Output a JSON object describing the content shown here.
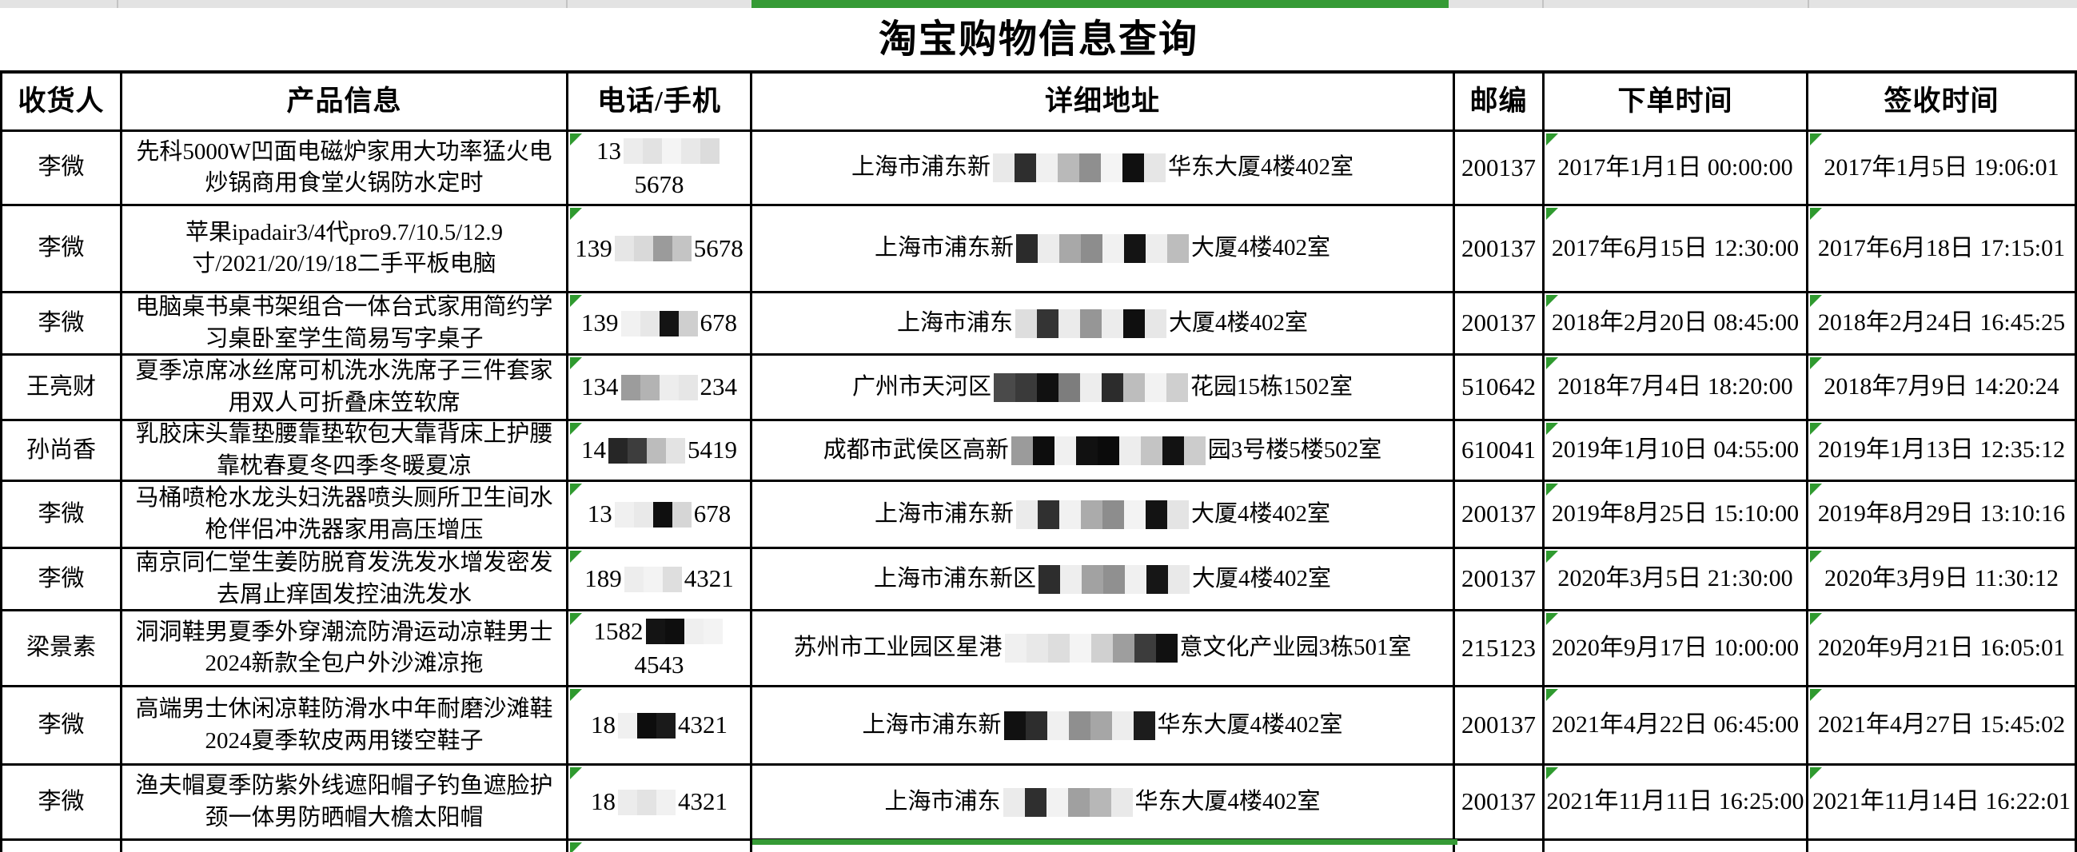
{
  "title": "淘宝购物信息查询",
  "colors": {
    "selection_green": "#359a35",
    "indicator_green": "#2f9a2f",
    "grid_border": "#000000",
    "sheet_strip": "#e3e3e3"
  },
  "columns": [
    {
      "key": "name",
      "label": "收货人"
    },
    {
      "key": "product",
      "label": "产品信息"
    },
    {
      "key": "phone",
      "label": "电话/手机"
    },
    {
      "key": "address",
      "label": "详细地址"
    },
    {
      "key": "zip",
      "label": "邮编"
    },
    {
      "key": "order_time",
      "label": "下单时间"
    },
    {
      "key": "sign_time",
      "label": "签收时间"
    }
  ],
  "rows": [
    {
      "name": "李微",
      "product": "先科5000W凹面电磁炉家用大功率猛火电炒锅商用食堂火锅防水定时",
      "phone": [
        {
          "t": "13"
        },
        {
          "m": [
            "#ececec",
            "#e2e2e2",
            "#f4f4f4",
            "#e8e8e8",
            "#dcdcdc"
          ]
        },
        {
          "t": "5678"
        }
      ],
      "address": [
        {
          "t": "上海市浦东新"
        },
        {
          "m": [
            "#e9e9e9",
            "#2e2e2e",
            "#f0f0f0",
            "#b9b9b9",
            "#8f8f8f",
            "#f4f4f4",
            "#101010",
            "#e6e6e6"
          ]
        },
        {
          "t": "华东大厦4楼402室"
        }
      ],
      "zip": "200137",
      "order_time": "2017年1月1日 00:00:00",
      "sign_time": "2017年1月5日 19:06:01"
    },
    {
      "name": "李微",
      "product": "苹果ipadair3/4代pro9.7/10.5/12.9寸/2021/20/19/18二手平板电脑",
      "phone": [
        {
          "t": "139"
        },
        {
          "m": [
            "#e6e6e6",
            "#d9d9d9",
            "#9b9b9b",
            "#c4c4c4"
          ]
        },
        {
          "t": "5678"
        }
      ],
      "address": [
        {
          "t": "上海市浦东新"
        },
        {
          "m": [
            "#2b2b2b",
            "#ececec",
            "#a8a8a8",
            "#8d8d8d",
            "#f1f1f1",
            "#141414",
            "#ededed",
            "#bdbdbd"
          ]
        },
        {
          "t": "大厦4楼402室"
        }
      ],
      "zip": "200137",
      "order_time": "2017年6月15日 12:30:00",
      "sign_time": "2017年6月18日 17:15:01"
    },
    {
      "name": "李微",
      "product": "电脑桌书桌书架组合一体台式家用简约学习桌卧室学生简易写字桌子",
      "phone": [
        {
          "t": "139"
        },
        {
          "m": [
            "#f1f1f1",
            "#e7e7e7",
            "#141414",
            "#cfcfcf"
          ]
        },
        {
          "t": "678"
        }
      ],
      "address": [
        {
          "t": "上海市浦东"
        },
        {
          "m": [
            "#dedede",
            "#343434",
            "#ebebeb",
            "#969696",
            "#ececec",
            "#0f0f0f",
            "#e7e7e7"
          ]
        },
        {
          "t": "大厦4楼402室"
        }
      ],
      "zip": "200137",
      "order_time": "2018年2月20日 08:45:00",
      "sign_time": "2018年2月24日 16:45:25"
    },
    {
      "name": "王亮财",
      "product": "夏季凉席冰丝席可机洗水洗席子三件套家用双人可折叠床笠软席",
      "phone": [
        {
          "t": "134"
        },
        {
          "m": [
            "#9c9c9c",
            "#b3b3b3",
            "#ededed",
            "#e6e6e6"
          ]
        },
        {
          "t": "234"
        }
      ],
      "address": [
        {
          "t": "广州市天河区"
        },
        {
          "m": [
            "#4a4a4a",
            "#3a3a3a",
            "#111111",
            "#7d7d7d",
            "#ededed",
            "#2c2c2c",
            "#bdbdbd",
            "#f2f2f2",
            "#cfcfcf"
          ]
        },
        {
          "t": "花园15栋1502室"
        }
      ],
      "zip": "510642",
      "order_time": "2018年7月4日 18:20:00",
      "sign_time": "2018年7月9日 14:20:24"
    },
    {
      "name": "孙尚香",
      "product": "乳胶床头靠垫腰靠垫软包大靠背床上护腰靠枕春夏冬四季冬暖夏凉",
      "phone": [
        {
          "t": "14"
        },
        {
          "m": [
            "#262626",
            "#3d3d3d",
            "#bcbcbc",
            "#e3e3e3"
          ]
        },
        {
          "t": "5419"
        }
      ],
      "address": [
        {
          "t": "成都市武侯区高新"
        },
        {
          "m": [
            "#9b9b9b",
            "#0d0d0d",
            "#f0f0f0",
            "#111111",
            "#0b0b0b",
            "#ededed",
            "#c4c4c4",
            "#121212",
            "#cccccc"
          ]
        },
        {
          "t": "园3号楼5楼502室"
        }
      ],
      "zip": "610041",
      "order_time": "2019年1月10日 04:55:00",
      "sign_time": "2019年1月13日 12:35:12"
    },
    {
      "name": "李微",
      "product": "马桶喷枪水龙头妇洗器喷头厕所卫生间水枪伴侣冲洗器家用高压增压",
      "phone": [
        {
          "t": "13"
        },
        {
          "m": [
            "#f0f0f0",
            "#e9e9e9",
            "#0f0f0f",
            "#d6d6d6"
          ]
        },
        {
          "t": "678"
        }
      ],
      "address": [
        {
          "t": "上海市浦东新"
        },
        {
          "m": [
            "#ebebeb",
            "#303030",
            "#f1f1f1",
            "#ababab",
            "#8d8d8d",
            "#f3f3f3",
            "#131313",
            "#e4e4e4"
          ]
        },
        {
          "t": "大厦4楼402室"
        }
      ],
      "zip": "200137",
      "order_time": "2019年8月25日 15:10:00",
      "sign_time": "2019年8月29日 13:10:16"
    },
    {
      "name": "李微",
      "product": "南京同仁堂生姜防脱育发洗发水增发密发去屑止痒固发控油洗发水",
      "phone": [
        {
          "t": "189"
        },
        {
          "m": [
            "#ededed",
            "#f3f3f3",
            "#dedede"
          ]
        },
        {
          "t": "4321"
        }
      ],
      "address": [
        {
          "t": "上海市浦东新区"
        },
        {
          "m": [
            "#2d2d2d",
            "#eeeeee",
            "#a2a2a2",
            "#909090",
            "#f0f0f0",
            "#161616",
            "#e9e9e9"
          ]
        },
        {
          "t": "大厦4楼402室"
        }
      ],
      "zip": "200137",
      "order_time": "2020年3月5日 21:30:00",
      "sign_time": "2020年3月9日 11:30:12"
    },
    {
      "name": "梁景素",
      "product": "洞洞鞋男夏季外穿潮流防滑运动凉鞋男士2024新款全包户外沙滩凉拖",
      "phone": [
        {
          "t": "1582"
        },
        {
          "m": [
            "#141414",
            "#0e0e0e",
            "#efefef",
            "#f3f3f3"
          ]
        },
        {
          "t": "4543"
        }
      ],
      "address": [
        {
          "t": "苏州市工业园区星港"
        },
        {
          "m": [
            "#f0f0f0",
            "#e8e8e8",
            "#dddddd",
            "#f4f4f4",
            "#d0d0d0",
            "#9e9e9e",
            "#3c3c3c",
            "#111111"
          ]
        },
        {
          "t": "意文化产业园3栋501室"
        }
      ],
      "zip": "215123",
      "order_time": "2020年9月17日 10:00:00",
      "sign_time": "2020年9月21日 16:05:01"
    },
    {
      "name": "李微",
      "product": "高端男士休闲凉鞋防滑水中年耐磨沙滩鞋2024夏季软皮两用镂空鞋子",
      "phone": [
        {
          "t": "18"
        },
        {
          "m": [
            "#f0f0f0",
            "#0d0d0d",
            "#1a1a1a"
          ]
        },
        {
          "t": "4321"
        }
      ],
      "address": [
        {
          "t": "上海市浦东新"
        },
        {
          "m": [
            "#111111",
            "#2d2d2d",
            "#f0f0f0",
            "#8f8f8f",
            "#a6a6a6",
            "#ededed",
            "#1c1c1c"
          ]
        },
        {
          "t": "华东大厦4楼402室"
        }
      ],
      "zip": "200137",
      "order_time": "2021年4月22日 06:45:00",
      "sign_time": "2021年4月27日 15:45:02"
    },
    {
      "name": "李微",
      "product": "渔夫帽夏季防紫外线遮阳帽子钓鱼遮脸护颈一体男防晒帽大檐太阳帽",
      "phone": [
        {
          "t": "18"
        },
        {
          "m": [
            "#ececec",
            "#e3e3e3",
            "#f1f1f1"
          ]
        },
        {
          "t": "4321"
        }
      ],
      "address": [
        {
          "t": "上海市浦东"
        },
        {
          "m": [
            "#ebebeb",
            "#2f2f2f",
            "#f2f2f2",
            "#a0a0a0",
            "#b7b7b7",
            "#e9e9e9"
          ]
        },
        {
          "t": "华东大厦4楼402室"
        }
      ],
      "zip": "200137",
      "order_time": "2021年11月11日 16:25:00",
      "sign_time": "2021年11月14日 16:22:01"
    }
  ]
}
